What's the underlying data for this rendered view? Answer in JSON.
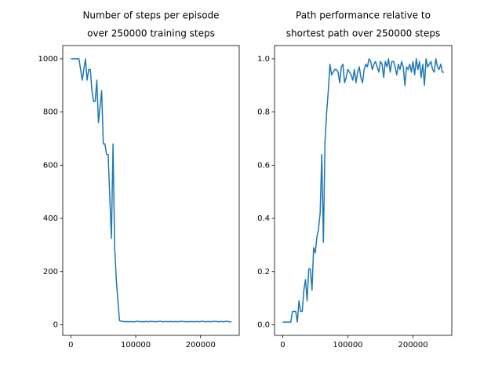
{
  "chart_data": [
    {
      "type": "line",
      "title": [
        "Number of steps per episode",
        " over 250000 training steps"
      ],
      "x": [
        0,
        2500,
        5000,
        7500,
        10000,
        12500,
        15000,
        17500,
        20000,
        22500,
        25000,
        27500,
        30000,
        32500,
        35000,
        37500,
        40000,
        42500,
        45000,
        47500,
        50000,
        52500,
        55000,
        57500,
        60000,
        62500,
        65000,
        67500,
        70000,
        72500,
        75000,
        77500,
        80000,
        82500,
        85000,
        87500,
        90000,
        92500,
        95000,
        97500,
        100000,
        102500,
        105000,
        107500,
        110000,
        112500,
        115000,
        117500,
        120000,
        122500,
        125000,
        127500,
        130000,
        132500,
        135000,
        137500,
        140000,
        142500,
        145000,
        147500,
        150000,
        152500,
        155000,
        157500,
        160000,
        162500,
        165000,
        167500,
        170000,
        172500,
        175000,
        177500,
        180000,
        182500,
        185000,
        187500,
        190000,
        192500,
        195000,
        197500,
        200000,
        202500,
        205000,
        207500,
        210000,
        212500,
        215000,
        217500,
        220000,
        222500,
        225000,
        227500,
        230000,
        232500,
        235000,
        237500,
        240000,
        242500,
        245000,
        247500
      ],
      "series": [
        {
          "color": "#1f77b4",
          "values": [
            1000,
            1000,
            1000,
            1000,
            1000,
            1000,
            960,
            920,
            960,
            1000,
            920,
            960,
            960,
            880,
            840,
            840,
            920,
            760,
            820,
            880,
            680,
            680,
            640,
            640,
            480,
            325,
            680,
            290,
            170,
            90,
            15,
            14,
            12,
            12,
            11,
            12,
            11,
            12,
            11,
            11,
            12,
            13,
            12,
            11,
            12,
            11,
            12,
            12,
            11,
            13,
            12,
            12,
            11,
            12,
            12,
            13,
            12,
            11,
            12,
            12,
            11,
            12,
            12,
            11,
            12,
            12,
            11,
            12,
            13,
            12,
            12,
            11,
            12,
            11,
            12,
            12,
            11,
            12,
            12,
            11,
            12,
            13,
            12,
            11,
            12,
            12,
            11,
            12,
            12,
            13,
            12,
            11,
            12,
            12,
            11,
            12,
            13,
            12,
            11,
            10
          ]
        }
      ],
      "xlim": [
        -12500,
        259500
      ],
      "xticks": [
        0,
        100000,
        200000
      ],
      "ylim": [
        -40,
        1050
      ],
      "yticks": [
        0,
        200,
        400,
        600,
        800,
        1000
      ]
    },
    {
      "type": "line",
      "title": [
        "Path performance relative to",
        "shortest path over 250000 steps"
      ],
      "x": [
        0,
        2500,
        5000,
        7500,
        10000,
        12500,
        15000,
        17500,
        20000,
        22500,
        25000,
        27500,
        30000,
        32500,
        35000,
        37500,
        40000,
        42500,
        45000,
        47500,
        50000,
        52500,
        55000,
        57500,
        60000,
        62500,
        65000,
        67500,
        70000,
        72500,
        75000,
        77500,
        80000,
        82500,
        85000,
        87500,
        90000,
        92500,
        95000,
        97500,
        100000,
        102500,
        105000,
        107500,
        110000,
        112500,
        115000,
        117500,
        120000,
        122500,
        125000,
        127500,
        130000,
        132500,
        135000,
        137500,
        140000,
        142500,
        145000,
        147500,
        150000,
        152500,
        155000,
        157500,
        160000,
        162500,
        165000,
        167500,
        170000,
        172500,
        175000,
        177500,
        180000,
        182500,
        185000,
        187500,
        190000,
        192500,
        195000,
        197500,
        200000,
        202500,
        205000,
        207500,
        210000,
        212500,
        215000,
        217500,
        220000,
        222500,
        225000,
        227500,
        230000,
        232500,
        235000,
        237500,
        240000,
        242500,
        245000,
        247500
      ],
      "series": [
        {
          "color": "#1f77b4",
          "values": [
            0.01,
            0.01,
            0.01,
            0.01,
            0.01,
            0.01,
            0.05,
            0.05,
            0.05,
            0.01,
            0.09,
            0.05,
            0.05,
            0.13,
            0.17,
            0.09,
            0.21,
            0.21,
            0.13,
            0.29,
            0.27,
            0.33,
            0.36,
            0.42,
            0.64,
            0.31,
            0.69,
            0.8,
            0.88,
            0.98,
            0.94,
            0.95,
            0.96,
            0.96,
            0.95,
            0.91,
            0.97,
            0.98,
            0.91,
            0.93,
            0.96,
            0.95,
            0.94,
            0.92,
            0.96,
            0.91,
            0.95,
            0.97,
            0.93,
            0.91,
            0.96,
            0.98,
            0.97,
            1.0,
            0.99,
            0.96,
            0.98,
            0.99,
            0.97,
            0.95,
            0.99,
            0.98,
            0.93,
            0.99,
            0.97,
            1.0,
            0.95,
            0.99,
            0.99,
            0.97,
            0.94,
            0.98,
            0.96,
            0.99,
            0.97,
            0.9,
            0.97,
            0.96,
            0.98,
            0.95,
            0.99,
            0.94,
            1.0,
            0.96,
            0.99,
            0.93,
            0.98,
            0.9,
            1.0,
            0.97,
            0.98,
            0.99,
            0.96,
            0.95,
            1.0,
            0.97,
            0.96,
            0.98,
            0.95,
            0.95
          ]
        }
      ],
      "xlim": [
        -12500,
        259500
      ],
      "xticks": [
        0,
        100000,
        200000
      ],
      "ylim": [
        -0.04,
        1.05
      ],
      "yticks": [
        {
          "value": 0,
          "label": "0.0"
        },
        0.2,
        0.4,
        0.6,
        0.8,
        {
          "value": 1,
          "label": "1.0"
        }
      ]
    }
  ]
}
